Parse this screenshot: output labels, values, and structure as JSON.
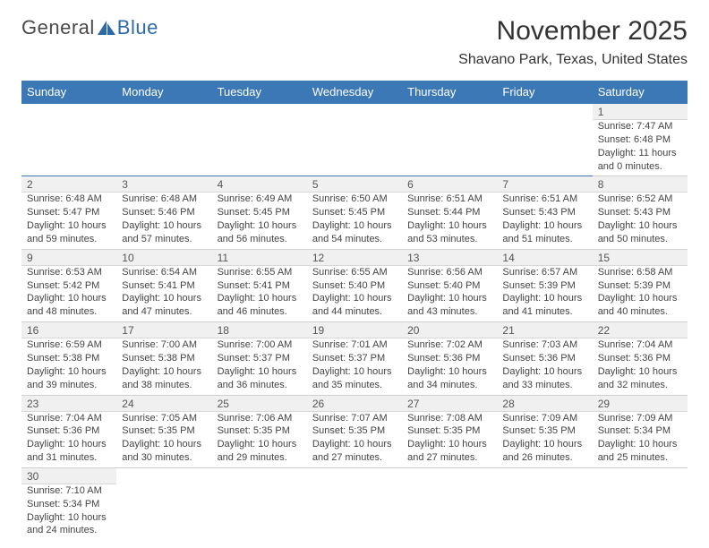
{
  "logo": {
    "text_a": "General",
    "text_b": "Blue",
    "accent_color": "#2f6aa8"
  },
  "title": "November 2025",
  "location": "Shavano Park, Texas, United States",
  "header_bg": "#3b78b5",
  "day_headers": [
    "Sunday",
    "Monday",
    "Tuesday",
    "Wednesday",
    "Thursday",
    "Friday",
    "Saturday"
  ],
  "weeks": [
    [
      null,
      null,
      null,
      null,
      null,
      null,
      {
        "n": "1",
        "sr": "7:47 AM",
        "ss": "6:48 PM",
        "dl": "11 hours and 0 minutes."
      }
    ],
    [
      {
        "n": "2",
        "sr": "6:48 AM",
        "ss": "5:47 PM",
        "dl": "10 hours and 59 minutes."
      },
      {
        "n": "3",
        "sr": "6:48 AM",
        "ss": "5:46 PM",
        "dl": "10 hours and 57 minutes."
      },
      {
        "n": "4",
        "sr": "6:49 AM",
        "ss": "5:45 PM",
        "dl": "10 hours and 56 minutes."
      },
      {
        "n": "5",
        "sr": "6:50 AM",
        "ss": "5:45 PM",
        "dl": "10 hours and 54 minutes."
      },
      {
        "n": "6",
        "sr": "6:51 AM",
        "ss": "5:44 PM",
        "dl": "10 hours and 53 minutes."
      },
      {
        "n": "7",
        "sr": "6:51 AM",
        "ss": "5:43 PM",
        "dl": "10 hours and 51 minutes."
      },
      {
        "n": "8",
        "sr": "6:52 AM",
        "ss": "5:43 PM",
        "dl": "10 hours and 50 minutes."
      }
    ],
    [
      {
        "n": "9",
        "sr": "6:53 AM",
        "ss": "5:42 PM",
        "dl": "10 hours and 48 minutes."
      },
      {
        "n": "10",
        "sr": "6:54 AM",
        "ss": "5:41 PM",
        "dl": "10 hours and 47 minutes."
      },
      {
        "n": "11",
        "sr": "6:55 AM",
        "ss": "5:41 PM",
        "dl": "10 hours and 46 minutes."
      },
      {
        "n": "12",
        "sr": "6:55 AM",
        "ss": "5:40 PM",
        "dl": "10 hours and 44 minutes."
      },
      {
        "n": "13",
        "sr": "6:56 AM",
        "ss": "5:40 PM",
        "dl": "10 hours and 43 minutes."
      },
      {
        "n": "14",
        "sr": "6:57 AM",
        "ss": "5:39 PM",
        "dl": "10 hours and 41 minutes."
      },
      {
        "n": "15",
        "sr": "6:58 AM",
        "ss": "5:39 PM",
        "dl": "10 hours and 40 minutes."
      }
    ],
    [
      {
        "n": "16",
        "sr": "6:59 AM",
        "ss": "5:38 PM",
        "dl": "10 hours and 39 minutes."
      },
      {
        "n": "17",
        "sr": "7:00 AM",
        "ss": "5:38 PM",
        "dl": "10 hours and 38 minutes."
      },
      {
        "n": "18",
        "sr": "7:00 AM",
        "ss": "5:37 PM",
        "dl": "10 hours and 36 minutes."
      },
      {
        "n": "19",
        "sr": "7:01 AM",
        "ss": "5:37 PM",
        "dl": "10 hours and 35 minutes."
      },
      {
        "n": "20",
        "sr": "7:02 AM",
        "ss": "5:36 PM",
        "dl": "10 hours and 34 minutes."
      },
      {
        "n": "21",
        "sr": "7:03 AM",
        "ss": "5:36 PM",
        "dl": "10 hours and 33 minutes."
      },
      {
        "n": "22",
        "sr": "7:04 AM",
        "ss": "5:36 PM",
        "dl": "10 hours and 32 minutes."
      }
    ],
    [
      {
        "n": "23",
        "sr": "7:04 AM",
        "ss": "5:36 PM",
        "dl": "10 hours and 31 minutes."
      },
      {
        "n": "24",
        "sr": "7:05 AM",
        "ss": "5:35 PM",
        "dl": "10 hours and 30 minutes."
      },
      {
        "n": "25",
        "sr": "7:06 AM",
        "ss": "5:35 PM",
        "dl": "10 hours and 29 minutes."
      },
      {
        "n": "26",
        "sr": "7:07 AM",
        "ss": "5:35 PM",
        "dl": "10 hours and 27 minutes."
      },
      {
        "n": "27",
        "sr": "7:08 AM",
        "ss": "5:35 PM",
        "dl": "10 hours and 27 minutes."
      },
      {
        "n": "28",
        "sr": "7:09 AM",
        "ss": "5:35 PM",
        "dl": "10 hours and 26 minutes."
      },
      {
        "n": "29",
        "sr": "7:09 AM",
        "ss": "5:34 PM",
        "dl": "10 hours and 25 minutes."
      }
    ],
    [
      {
        "n": "30",
        "sr": "7:10 AM",
        "ss": "5:34 PM",
        "dl": "10 hours and 24 minutes."
      },
      null,
      null,
      null,
      null,
      null,
      null
    ]
  ],
  "labels": {
    "sunrise": "Sunrise:",
    "sunset": "Sunset:",
    "daylight": "Daylight:"
  }
}
